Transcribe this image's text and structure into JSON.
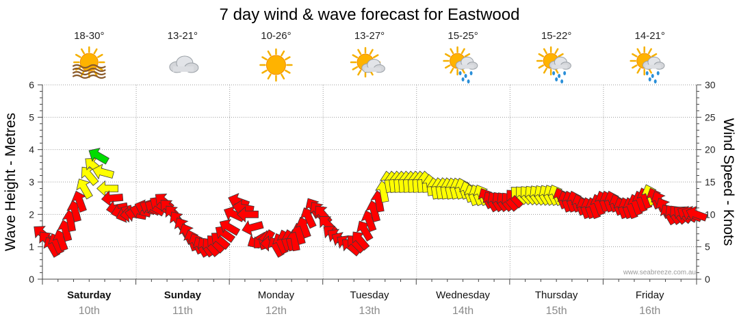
{
  "chart_data": {
    "type": "line",
    "title": "7 day wind & wave forecast for Eastwood",
    "ylabel_left": "Wave Height - Metres",
    "ylabel_right": "Wind Speed - Knots",
    "ylim_left": [
      0,
      6
    ],
    "yticks_left": [
      "0",
      "1",
      "2",
      "3",
      "4",
      "5",
      "6"
    ],
    "ylim_right": [
      0,
      30
    ],
    "yticks_right": [
      "0",
      "5",
      "10",
      "15",
      "20",
      "25",
      "30"
    ],
    "grid": true,
    "credit": "www.seabreeze.com.au",
    "days": [
      {
        "name": "Saturday",
        "date": "10th",
        "bold": true,
        "temp": "18-30°",
        "icon": "sun-haze-icon"
      },
      {
        "name": "Sunday",
        "date": "11th",
        "bold": true,
        "temp": "13-21°",
        "icon": "cloud-icon"
      },
      {
        "name": "Monday",
        "date": "12th",
        "bold": false,
        "temp": "10-26°",
        "icon": "sun-icon"
      },
      {
        "name": "Tuesday",
        "date": "13th",
        "bold": false,
        "temp": "13-27°",
        "icon": "partly-cloudy-icon"
      },
      {
        "name": "Wednesday",
        "date": "14th",
        "bold": false,
        "temp": "15-25°",
        "icon": "sun-shower-icon"
      },
      {
        "name": "Thursday",
        "date": "15th",
        "bold": false,
        "temp": "15-22°",
        "icon": "sun-shower-icon"
      },
      {
        "name": "Friday",
        "date": "16th",
        "bold": false,
        "temp": "14-21°",
        "icon": "sun-shower-icon"
      }
    ],
    "wind_series": {
      "name": "Wind Speed",
      "unit": "knots",
      "x_days": [
        0.0,
        0.1,
        0.2,
        0.3,
        0.4,
        0.5,
        0.6,
        0.7,
        0.8,
        0.9,
        1.0,
        1.1,
        1.2,
        1.3,
        1.4,
        1.5,
        1.6,
        1.7,
        1.8,
        1.9,
        2.0,
        2.1,
        2.2,
        2.3,
        2.4,
        2.5,
        2.6,
        2.7,
        2.8,
        2.9,
        3.0,
        3.1,
        3.2,
        3.3,
        3.4,
        3.5,
        3.6,
        3.7,
        3.8,
        3.9,
        4.0,
        4.1,
        4.2,
        4.3,
        4.4,
        4.5,
        4.6,
        4.7,
        4.8,
        4.9,
        5.0,
        5.1,
        5.2,
        5.3,
        5.4,
        5.5,
        5.6,
        5.7,
        5.8,
        5.9,
        6.0,
        6.1,
        6.2,
        6.3,
        6.4,
        6.5,
        6.6,
        6.7,
        6.8,
        6.9,
        7.0
      ],
      "knots": [
        7,
        5,
        6,
        9,
        12,
        16,
        19,
        14,
        11,
        10,
        10,
        11,
        11,
        12,
        10,
        8,
        6,
        5,
        5,
        6,
        8,
        12,
        10,
        6,
        6,
        5,
        6,
        6,
        8,
        11,
        10,
        7,
        6,
        5,
        6,
        9,
        12,
        15,
        15,
        15,
        15,
        15,
        14,
        14,
        14,
        14,
        13,
        13,
        12,
        12,
        12,
        13,
        13,
        13,
        13,
        13,
        12,
        12,
        11,
        11,
        12,
        12,
        11,
        11,
        12,
        13,
        12,
        10,
        10,
        10,
        10
      ],
      "directions_deg": [
        230,
        210,
        200,
        190,
        200,
        220,
        240,
        270,
        280,
        290,
        260,
        250,
        240,
        230,
        220,
        210,
        200,
        210,
        220,
        230,
        240,
        250,
        270,
        300,
        330,
        210,
        200,
        190,
        200,
        210,
        220,
        230,
        240,
        230,
        220,
        200,
        190,
        190,
        185,
        185,
        185,
        185,
        190,
        190,
        195,
        200,
        200,
        205,
        210,
        215,
        220,
        225,
        220,
        215,
        210,
        205,
        200,
        200,
        200,
        200,
        200,
        200,
        200,
        200,
        200,
        200,
        205,
        210,
        220,
        240,
        250
      ]
    },
    "wind_colors": {
      "light": "#ff0000",
      "moderate": "#ffff00",
      "strong": "#00dd00"
    }
  }
}
